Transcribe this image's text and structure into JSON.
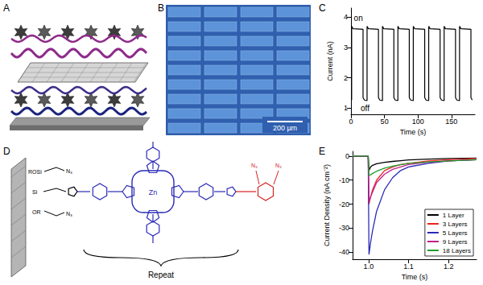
{
  "A": {
    "label": "A"
  },
  "B": {
    "label": "B",
    "scale_bar": "200 µm"
  },
  "D": {
    "label": "D",
    "surface_labels": [
      "ROSi",
      "Si",
      "OR"
    ],
    "azide": "N₃",
    "metal": "Zn",
    "bracket": "Repeat"
  },
  "chart_data": [
    {
      "panel": "C",
      "type": "line",
      "x_label": "Time (s)",
      "y_label": "Current (nA)",
      "xlim": [
        0,
        185
      ],
      "xticks": [
        0,
        50,
        100,
        150
      ],
      "ylim": [
        0.8,
        4.3
      ],
      "yticks": [
        1,
        2,
        3,
        4
      ],
      "grid": false,
      "color": "#000000",
      "x": [
        0,
        1,
        1,
        3,
        18,
        18,
        20,
        24,
        24,
        26,
        41,
        41,
        43,
        47,
        47,
        49,
        64,
        64,
        66,
        70,
        70,
        72,
        87,
        87,
        89,
        93,
        93,
        95,
        110,
        110,
        112,
        116,
        116,
        118,
        133,
        133,
        135,
        139,
        139,
        141,
        156,
        156,
        158,
        162,
        162,
        164,
        179,
        179,
        181
      ],
      "values": [
        1.28,
        1.28,
        3.7,
        3.62,
        3.6,
        1.35,
        1.27,
        1.25,
        3.7,
        3.62,
        3.6,
        1.35,
        1.27,
        1.25,
        3.7,
        3.62,
        3.6,
        1.35,
        1.27,
        1.25,
        3.7,
        3.62,
        3.6,
        1.35,
        1.27,
        1.25,
        3.7,
        3.62,
        3.6,
        1.35,
        1.27,
        1.25,
        3.7,
        3.62,
        3.6,
        1.35,
        1.27,
        1.25,
        3.7,
        3.62,
        3.6,
        1.35,
        1.27,
        1.25,
        3.7,
        3.62,
        3.6,
        1.35,
        1.27
      ],
      "annotations": [
        {
          "text": "on",
          "x": 11,
          "y": 3.98
        },
        {
          "text": "off",
          "x": 21,
          "y": 1.0
        }
      ]
    },
    {
      "panel": "E",
      "type": "line",
      "x_label": "Time (s)",
      "y_label": "Current Density (nA cm⁻²)",
      "xlim": [
        0.96,
        1.27
      ],
      "xticks": [
        {
          "value": 1,
          "label": "1.0"
        },
        {
          "value": 1.1,
          "label": "1.1"
        },
        {
          "value": 1.2,
          "label": "1.2"
        }
      ],
      "ylim": [
        -43,
        2
      ],
      "yticks": [
        -40,
        -30,
        -20,
        -10,
        0
      ],
      "grid": false,
      "legend": "lower right",
      "x": [
        0.96,
        0.999,
        1.001,
        1.005,
        1.01,
        1.02,
        1.04,
        1.06,
        1.08,
        1.1,
        1.15,
        1.2,
        1.27
      ],
      "series": [
        {
          "name": "1 Layer",
          "color": "#000000",
          "values": [
            0,
            0,
            -6,
            -4.5,
            -3.8,
            -3.2,
            -2.6,
            -2.2,
            -1.9,
            -1.6,
            -1.2,
            -1.0,
            -0.8
          ]
        },
        {
          "name": "3 Layers",
          "color": "#ee2222",
          "values": [
            0,
            0,
            -20,
            -17,
            -14,
            -10,
            -6,
            -4.5,
            -3.5,
            -3,
            -2,
            -1.5,
            -1
          ]
        },
        {
          "name": "5 Layers",
          "color": "#2a2ab8",
          "values": [
            0,
            0,
            -41,
            -36,
            -31,
            -23,
            -14,
            -9,
            -6,
            -4.5,
            -3,
            -2,
            -1.5
          ]
        },
        {
          "name": "9 Layers",
          "color": "#c0208a",
          "values": [
            0,
            0,
            -19,
            -17,
            -15,
            -11,
            -7.5,
            -5.5,
            -4.5,
            -3.5,
            -2.5,
            -2,
            -1.5
          ]
        },
        {
          "name": "18 Layers",
          "color": "#1f9e2e",
          "values": [
            0,
            0,
            -8,
            -7.8,
            -7.2,
            -6.3,
            -5,
            -4.2,
            -3.6,
            -3,
            -2.4,
            -2,
            -1.5
          ]
        }
      ]
    }
  ]
}
